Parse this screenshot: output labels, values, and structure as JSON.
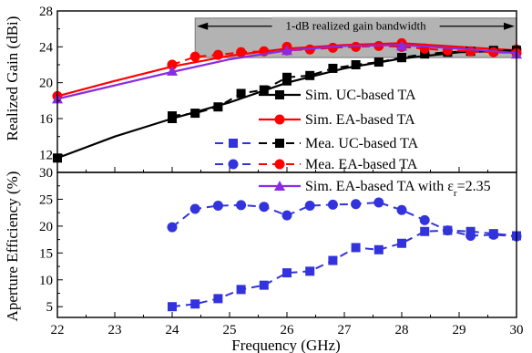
{
  "chart_data": [
    {
      "type": "line",
      "ylabel": "Realized Gain (dBi)",
      "xlim": [
        22,
        30
      ],
      "ylim": [
        10,
        28
      ],
      "yticks": [
        12,
        16,
        20,
        24,
        28
      ],
      "annotation": "1-dB realized gain bandwidth",
      "annotation_range": [
        24.4,
        30
      ],
      "series": [
        {
          "name": "Sim. UC-based TA",
          "color": "#000000",
          "style": "solid",
          "marker": "square",
          "points": [
            [
              22,
              11.6
            ],
            [
              23,
              14.0
            ],
            [
              24,
              16.0
            ],
            [
              25,
              17.8
            ],
            [
              26,
              20.0
            ],
            [
              27,
              21.6
            ],
            [
              28,
              22.7
            ],
            [
              29,
              23.4
            ],
            [
              30,
              23.6
            ]
          ],
          "markers": [
            [
              22,
              11.6
            ],
            [
              24,
              16.0
            ],
            [
              26,
              20.2
            ],
            [
              28,
              22.8
            ],
            [
              30,
              23.6
            ]
          ]
        },
        {
          "name": "Sim. EA-based TA",
          "color": "#ff0000",
          "style": "solid",
          "marker": "circle",
          "points": [
            [
              22,
              18.5
            ],
            [
              23,
              20.2
            ],
            [
              24,
              21.8
            ],
            [
              25,
              23.0
            ],
            [
              26,
              23.8
            ],
            [
              27,
              24.2
            ],
            [
              28,
              24.4
            ],
            [
              29,
              24.0
            ],
            [
              30,
              23.6
            ]
          ],
          "markers": [
            [
              22,
              18.5
            ],
            [
              24,
              22.0
            ],
            [
              26,
              24.0
            ],
            [
              28,
              24.4
            ],
            [
              30,
              23.7
            ]
          ]
        },
        {
          "name": "Mea. UC-based TA",
          "color": "#000000",
          "style": "dashed",
          "marker": "square",
          "points": [
            [
              24,
              16.3
            ],
            [
              24.4,
              16.6
            ],
            [
              24.8,
              17.3
            ],
            [
              25.2,
              18.8
            ],
            [
              25.6,
              19.2
            ],
            [
              26,
              20.6
            ],
            [
              26.4,
              20.8
            ],
            [
              26.8,
              21.6
            ],
            [
              27.2,
              22.0
            ],
            [
              27.6,
              22.3
            ],
            [
              28,
              22.8
            ],
            [
              28.4,
              23.2
            ],
            [
              28.8,
              23.4
            ],
            [
              29.2,
              23.5
            ],
            [
              29.6,
              23.6
            ],
            [
              30,
              23.6
            ]
          ]
        },
        {
          "name": "Mea. EA-based TA",
          "color": "#ff0000",
          "style": "dashed",
          "marker": "circle",
          "points": [
            [
              24,
              22.0
            ],
            [
              24.4,
              22.9
            ],
            [
              24.8,
              23.1
            ],
            [
              25.2,
              23.4
            ],
            [
              25.6,
              23.5
            ],
            [
              26,
              23.6
            ],
            [
              26.4,
              23.7
            ],
            [
              26.8,
              23.9
            ],
            [
              27.2,
              24.0
            ],
            [
              27.6,
              24.1
            ],
            [
              28,
              24.0
            ],
            [
              28.4,
              23.8
            ],
            [
              28.8,
              23.6
            ],
            [
              29.2,
              23.5
            ],
            [
              29.6,
              23.4
            ],
            [
              30,
              23.3
            ]
          ]
        },
        {
          "name": "Sim. EA-based TA with εr=2.35",
          "color": "#8a2be2",
          "style": "solid",
          "marker": "triangle",
          "points": [
            [
              22,
              18.2
            ],
            [
              23,
              19.7
            ],
            [
              24,
              21.2
            ],
            [
              25,
              22.6
            ],
            [
              26,
              23.6
            ],
            [
              27,
              24.1
            ],
            [
              28,
              24.2
            ],
            [
              29,
              23.8
            ],
            [
              30,
              23.3
            ]
          ],
          "markers": [
            [
              22,
              18.2
            ],
            [
              24,
              21.3
            ],
            [
              26,
              23.6
            ],
            [
              28,
              24.1
            ],
            [
              30,
              23.2
            ]
          ]
        }
      ]
    },
    {
      "type": "line",
      "xlabel": "Frequency (GHz)",
      "ylabel": "Aperture Efficiency (%)",
      "xlim": [
        22,
        30
      ],
      "ylim": [
        3,
        30
      ],
      "yticks": [
        5,
        10,
        15,
        20,
        25,
        30
      ],
      "xticks": [
        22,
        23,
        24,
        25,
        26,
        27,
        28,
        29,
        30
      ],
      "series": [
        {
          "name": "UC-based TA",
          "color": "#3333dd",
          "style": "dashed",
          "marker": "square",
          "points": [
            [
              24,
              5.0
            ],
            [
              24.4,
              5.5
            ],
            [
              24.8,
              6.5
            ],
            [
              25.2,
              8.2
            ],
            [
              25.6,
              9.0
            ],
            [
              26,
              11.3
            ],
            [
              26.4,
              11.6
            ],
            [
              26.8,
              13.6
            ],
            [
              27.2,
              16.0
            ],
            [
              27.6,
              15.6
            ],
            [
              28,
              16.8
            ],
            [
              28.4,
              19.0
            ],
            [
              28.8,
              19.2
            ],
            [
              29.2,
              19.0
            ],
            [
              29.6,
              18.6
            ],
            [
              30,
              18.2
            ]
          ]
        },
        {
          "name": "EA-based TA",
          "color": "#3333dd",
          "style": "dashed",
          "marker": "circle",
          "points": [
            [
              24,
              19.8
            ],
            [
              24.4,
              23.2
            ],
            [
              24.8,
              23.8
            ],
            [
              25.2,
              23.9
            ],
            [
              25.6,
              23.6
            ],
            [
              26,
              22.0
            ],
            [
              26.4,
              23.8
            ],
            [
              26.8,
              24.0
            ],
            [
              27.2,
              24.1
            ],
            [
              27.6,
              24.4
            ],
            [
              28,
              23.0
            ],
            [
              28.4,
              21.1
            ],
            [
              28.8,
              19.2
            ],
            [
              29.2,
              18.2
            ],
            [
              29.6,
              18.4
            ],
            [
              30,
              18.1
            ]
          ]
        }
      ]
    }
  ]
}
